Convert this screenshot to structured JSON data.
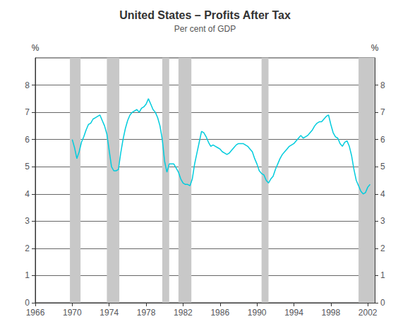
{
  "chart_data": {
    "type": "line",
    "title": "United States – Profits After Tax",
    "subtitle": "Per cent of GDP",
    "ylabel": "%",
    "y2label": "%",
    "xlim": [
      1966,
      2002.75
    ],
    "xticks": [
      1966,
      1970,
      1974,
      1978,
      1982,
      1986,
      1990,
      1994,
      1998,
      2002
    ],
    "ylim": [
      0,
      9
    ],
    "yticks": [
      0,
      1,
      2,
      3,
      4,
      5,
      6,
      7,
      8
    ],
    "y2lim": [
      0,
      9
    ],
    "y2ticks": [
      0,
      1,
      2,
      3,
      4,
      5,
      6,
      7,
      8
    ],
    "grid": true,
    "color": "#00CCDD",
    "bands": {
      "color": "#C8C8C8",
      "ranges": [
        [
          1969.75,
          1970.9
        ],
        [
          1973.75,
          1975.1
        ],
        [
          1979.75,
          1980.5
        ],
        [
          1981.5,
          1982.9
        ],
        [
          1990.5,
          1991.25
        ],
        [
          2001.0,
          2002.75
        ]
      ]
    },
    "x": [
      1970.0,
      1970.25,
      1970.5,
      1970.75,
      1971.0,
      1971.25,
      1971.5,
      1971.75,
      1972.0,
      1972.25,
      1972.5,
      1972.75,
      1973.0,
      1973.25,
      1973.5,
      1973.75,
      1974.0,
      1974.25,
      1974.5,
      1974.75,
      1975.0,
      1975.25,
      1975.5,
      1975.75,
      1976.0,
      1976.25,
      1976.5,
      1976.75,
      1977.0,
      1977.25,
      1977.5,
      1977.75,
      1978.0,
      1978.25,
      1978.5,
      1978.75,
      1979.0,
      1979.25,
      1979.5,
      1979.75,
      1980.0,
      1980.25,
      1980.5,
      1980.75,
      1981.0,
      1981.25,
      1981.5,
      1981.75,
      1982.0,
      1982.25,
      1982.5,
      1982.75,
      1983.0,
      1983.25,
      1983.5,
      1983.75,
      1984.0,
      1984.25,
      1984.5,
      1984.75,
      1985.0,
      1985.25,
      1985.5,
      1985.75,
      1986.0,
      1986.25,
      1986.5,
      1986.75,
      1987.0,
      1987.25,
      1987.5,
      1987.75,
      1988.0,
      1988.25,
      1988.5,
      1988.75,
      1989.0,
      1989.25,
      1989.5,
      1989.75,
      1990.0,
      1990.25,
      1990.5,
      1990.75,
      1991.0,
      1991.25,
      1991.5,
      1991.75,
      1992.0,
      1992.25,
      1992.5,
      1992.75,
      1993.0,
      1993.25,
      1993.5,
      1993.75,
      1994.0,
      1994.25,
      1994.5,
      1994.75,
      1995.0,
      1995.25,
      1995.5,
      1995.75,
      1996.0,
      1996.25,
      1996.5,
      1996.75,
      1997.0,
      1997.25,
      1997.5,
      1997.75,
      1998.0,
      1998.25,
      1998.5,
      1998.75,
      1999.0,
      1999.25,
      1999.5,
      1999.75,
      2000.0,
      2000.25,
      2000.5,
      2000.75,
      2001.0,
      2001.25,
      2001.5,
      2001.75,
      2002.0,
      2002.25
    ],
    "values": [
      6.0,
      5.7,
      5.3,
      5.55,
      5.9,
      6.1,
      6.35,
      6.55,
      6.6,
      6.75,
      6.8,
      6.85,
      6.9,
      6.7,
      6.5,
      6.2,
      5.6,
      5.0,
      4.85,
      4.85,
      4.9,
      5.5,
      6.0,
      6.4,
      6.7,
      6.9,
      7.0,
      7.05,
      7.1,
      7.0,
      7.15,
      7.2,
      7.3,
      7.5,
      7.3,
      7.1,
      7.0,
      6.8,
      6.5,
      6.0,
      5.2,
      4.8,
      5.1,
      5.1,
      5.1,
      4.95,
      4.8,
      4.55,
      4.4,
      4.35,
      4.35,
      4.3,
      4.55,
      5.1,
      5.5,
      5.9,
      6.3,
      6.25,
      6.1,
      5.9,
      5.75,
      5.8,
      5.75,
      5.7,
      5.65,
      5.55,
      5.5,
      5.45,
      5.5,
      5.6,
      5.7,
      5.8,
      5.85,
      5.85,
      5.85,
      5.8,
      5.75,
      5.65,
      5.55,
      5.3,
      5.1,
      4.85,
      4.75,
      4.7,
      4.5,
      4.4,
      4.55,
      4.65,
      4.9,
      5.1,
      5.3,
      5.45,
      5.55,
      5.65,
      5.75,
      5.8,
      5.85,
      5.95,
      6.05,
      6.15,
      6.05,
      6.1,
      6.15,
      6.25,
      6.35,
      6.5,
      6.6,
      6.65,
      6.65,
      6.75,
      6.85,
      6.9,
      6.55,
      6.25,
      6.1,
      6.05,
      5.85,
      5.75,
      5.9,
      5.95,
      5.75,
      5.4,
      4.9,
      4.5,
      4.3,
      4.1,
      4.0,
      4.05,
      4.25,
      4.35
    ]
  }
}
